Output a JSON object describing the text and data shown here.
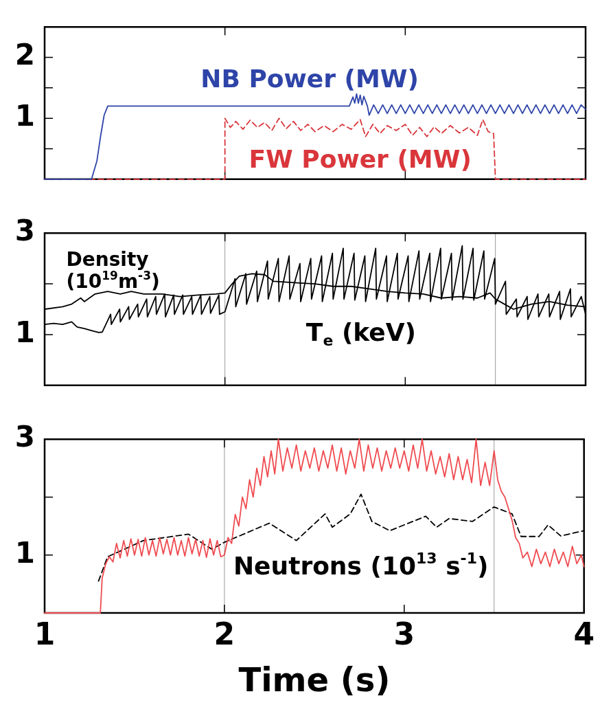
{
  "chart_data": [
    {
      "type": "line",
      "xlim": [
        1,
        4
      ],
      "xticks": [
        1,
        2,
        3,
        4
      ],
      "ylim": [
        0,
        2.5
      ],
      "yticks": [
        {
          "value": 0.5,
          "label": null
        },
        1,
        {
          "value": 1.5,
          "label": null
        },
        2
      ],
      "tick_labels": "y",
      "series": [
        {
          "name": "NB Power (MW)",
          "color": "#2e44a8",
          "line_style": "solid",
          "x": [
            1,
            1.26,
            1.29,
            1.31,
            1.33,
            1.35,
            2.0,
            2.69,
            2.71,
            2.72,
            2.73,
            2.74,
            2.75,
            2.76,
            2.77,
            2.79,
            2.8,
            2.825,
            2.85,
            2.875,
            2.9,
            2.925,
            2.95,
            2.975,
            3.0,
            3.025,
            3.05,
            3.075,
            3.1,
            3.125,
            3.15,
            3.175,
            3.2,
            3.225,
            3.25,
            3.275,
            3.3,
            3.325,
            3.35,
            3.375,
            3.4,
            3.425,
            3.45,
            3.475,
            3.5,
            3.525,
            3.55,
            3.575,
            3.6,
            3.625,
            3.65,
            3.675,
            3.7,
            3.725,
            3.75,
            3.775,
            3.8,
            3.825,
            3.85,
            3.875,
            3.9,
            3.925,
            3.95,
            3.975,
            4.0
          ],
          "values": [
            0,
            0,
            0.3,
            0.7,
            1.05,
            1.2,
            1.2,
            1.2,
            1.35,
            1.25,
            1.4,
            1.25,
            1.38,
            1.22,
            1.36,
            1.2,
            1.05,
            1.22,
            1.08,
            1.22,
            1.08,
            1.22,
            1.08,
            1.22,
            1.08,
            1.22,
            1.08,
            1.22,
            1.08,
            1.22,
            1.08,
            1.22,
            1.08,
            1.22,
            1.08,
            1.22,
            1.08,
            1.22,
            1.08,
            1.22,
            1.08,
            1.22,
            1.08,
            1.22,
            1.08,
            1.22,
            1.08,
            1.22,
            1.08,
            1.22,
            1.08,
            1.22,
            1.08,
            1.22,
            1.08,
            1.22,
            1.08,
            1.22,
            1.08,
            1.22,
            1.08,
            1.22,
            1.08,
            1.22,
            1.15
          ]
        },
        {
          "name": "FW Power (MW)",
          "color": "#d9363b",
          "line_style": "dashed",
          "x": [
            1,
            2.0,
            2.0,
            2.03,
            2.06,
            2.1,
            2.14,
            2.18,
            2.22,
            2.26,
            2.3,
            2.34,
            2.38,
            2.42,
            2.46,
            2.5,
            2.55,
            2.6,
            2.65,
            2.7,
            2.75,
            2.78,
            2.82,
            2.86,
            2.9,
            2.95,
            3.0,
            3.04,
            3.08,
            3.12,
            3.16,
            3.2,
            3.25,
            3.3,
            3.35,
            3.4,
            3.43,
            3.46,
            3.49,
            3.5,
            4
          ],
          "values": [
            0,
            0,
            1.0,
            0.85,
            0.95,
            0.82,
            0.97,
            0.85,
            0.93,
            0.8,
            1.0,
            0.83,
            0.95,
            0.8,
            0.9,
            0.78,
            0.88,
            0.78,
            0.9,
            0.82,
            0.98,
            0.7,
            0.9,
            0.75,
            0.88,
            0.8,
            0.9,
            0.72,
            0.85,
            0.7,
            0.86,
            0.75,
            0.88,
            0.76,
            0.85,
            0.72,
            0.98,
            0.78,
            0.75,
            0,
            0
          ]
        }
      ]
    },
    {
      "type": "line",
      "xlim": [
        1,
        4
      ],
      "xticks": [
        1,
        2,
        3,
        4
      ],
      "ylim": [
        0,
        3
      ],
      "yticks": [
        1,
        {
          "value": 2,
          "label": null
        },
        3
      ],
      "tick_labels": "y",
      "ref_lines": [
        {
          "axis": "x",
          "value": 2,
          "color": "#999999"
        },
        {
          "axis": "x",
          "value": 3.5,
          "color": "#999999"
        }
      ],
      "series": [
        {
          "name": "Density (10$^{19}$m$^{-3}$)",
          "color": "#000000",
          "line_style": "solid",
          "x": [
            1.0,
            1.1,
            1.15,
            1.2,
            1.22,
            1.28,
            1.35,
            1.42,
            1.48,
            1.55,
            1.65,
            1.75,
            1.85,
            1.95,
            2.0,
            2.04,
            2.08,
            2.15,
            2.22,
            2.27,
            2.4,
            2.5,
            2.6,
            2.7,
            2.8,
            2.9,
            3.0,
            3.1,
            3.2,
            3.3,
            3.4,
            3.47,
            3.5,
            3.55,
            3.6,
            3.7,
            3.8,
            3.9,
            4.0
          ],
          "values": [
            1.5,
            1.55,
            1.6,
            1.72,
            1.65,
            1.8,
            1.85,
            1.8,
            1.85,
            1.8,
            1.8,
            1.75,
            1.78,
            1.8,
            1.82,
            2.0,
            2.15,
            2.2,
            2.18,
            2.05,
            2.02,
            2.0,
            1.95,
            1.95,
            1.9,
            1.85,
            1.82,
            1.8,
            1.72,
            1.75,
            1.72,
            1.82,
            1.7,
            1.6,
            1.5,
            1.6,
            1.65,
            1.58,
            1.55
          ]
        },
        {
          "name": "T$_{e}$ (keV)",
          "color": "#000000",
          "line_style": "solid",
          "x": [
            1.0,
            1.05,
            1.1,
            1.15,
            1.18,
            1.22,
            1.26,
            1.3,
            1.32,
            1.366,
            1.37,
            1.416,
            1.42,
            1.466,
            1.47,
            1.516,
            1.52,
            1.566,
            1.57,
            1.616,
            1.62,
            1.666,
            1.67,
            1.716,
            1.72,
            1.766,
            1.77,
            1.816,
            1.82,
            1.866,
            1.87,
            1.916,
            1.92,
            1.966,
            1.97,
            2.0,
            2.056,
            2.06,
            2.116,
            2.12,
            2.176,
            2.18,
            2.236,
            2.24,
            2.296,
            2.3,
            2.356,
            2.36,
            2.416,
            2.42,
            2.476,
            2.48,
            2.536,
            2.54,
            2.596,
            2.6,
            2.656,
            2.66,
            2.716,
            2.72,
            2.776,
            2.78,
            2.836,
            2.84,
            2.896,
            2.9,
            2.956,
            2.96,
            3.016,
            3.02,
            3.076,
            3.08,
            3.136,
            3.14,
            3.196,
            3.2,
            3.256,
            3.26,
            3.316,
            3.32,
            3.376,
            3.38,
            3.436,
            3.44,
            3.496,
            3.5,
            3.556,
            3.56,
            3.616,
            3.62,
            3.676,
            3.68,
            3.736,
            3.74,
            3.796,
            3.8,
            3.856,
            3.86,
            3.916,
            3.92,
            3.976,
            4.0
          ],
          "values": [
            1.2,
            1.22,
            1.2,
            1.25,
            1.15,
            1.12,
            1.08,
            1.04,
            1.05,
            1.4,
            1.2,
            1.5,
            1.25,
            1.55,
            1.3,
            1.6,
            1.35,
            1.7,
            1.35,
            1.75,
            1.4,
            1.8,
            1.35,
            1.78,
            1.4,
            1.78,
            1.4,
            1.75,
            1.4,
            1.78,
            1.4,
            1.75,
            1.42,
            1.78,
            1.4,
            1.45,
            2.1,
            1.55,
            2.2,
            1.6,
            2.25,
            1.65,
            2.45,
            1.7,
            2.5,
            1.65,
            2.55,
            1.7,
            2.4,
            1.65,
            2.5,
            1.7,
            2.55,
            1.65,
            2.6,
            1.7,
            2.7,
            1.7,
            2.6,
            1.68,
            2.55,
            1.65,
            2.7,
            1.7,
            2.55,
            1.65,
            2.6,
            1.7,
            2.55,
            1.65,
            2.65,
            1.7,
            2.6,
            1.65,
            2.7,
            1.7,
            2.6,
            1.68,
            2.75,
            1.7,
            2.7,
            1.68,
            2.65,
            1.7,
            2.5,
            1.6,
            2.05,
            1.4,
            1.7,
            1.35,
            1.75,
            1.3,
            1.8,
            1.35,
            1.8,
            1.35,
            1.85,
            1.3,
            1.9,
            1.35,
            1.75,
            1.4
          ]
        }
      ]
    },
    {
      "type": "line",
      "xlim": [
        1,
        4
      ],
      "xticks": [
        1,
        2,
        3,
        4
      ],
      "ylim": [
        0,
        3
      ],
      "yticks": [
        1,
        {
          "value": 2,
          "label": null
        },
        3
      ],
      "xlabel": "Time (s)",
      "annotations": [
        "Neutrons (10$^{13}$ s$^{-1}$)"
      ],
      "ref_lines": [
        {
          "axis": "x",
          "value": 2,
          "color": "#999999"
        },
        {
          "axis": "x",
          "value": 3.5,
          "color": "#999999"
        }
      ],
      "series": [
        {
          "color": "#ef4b50",
          "line_style": "solid",
          "x": [
            1.0,
            1.31,
            1.32,
            1.34,
            1.36,
            1.38,
            1.4,
            1.42,
            1.44,
            1.46,
            1.48,
            1.5,
            1.52,
            1.54,
            1.56,
            1.58,
            1.6,
            1.62,
            1.64,
            1.66,
            1.68,
            1.7,
            1.72,
            1.74,
            1.76,
            1.78,
            1.8,
            1.82,
            1.84,
            1.86,
            1.88,
            1.9,
            1.92,
            1.94,
            1.96,
            1.98,
            2.0,
            2.02,
            2.04,
            2.06,
            2.08,
            2.1,
            2.12,
            2.14,
            2.16,
            2.18,
            2.2,
            2.22,
            2.24,
            2.26,
            2.28,
            2.3,
            2.325,
            2.35,
            2.375,
            2.4,
            2.425,
            2.45,
            2.475,
            2.5,
            2.525,
            2.55,
            2.575,
            2.6,
            2.625,
            2.65,
            2.675,
            2.7,
            2.725,
            2.75,
            2.775,
            2.8,
            2.825,
            2.85,
            2.875,
            2.9,
            2.925,
            2.95,
            2.975,
            3.0,
            3.025,
            3.05,
            3.075,
            3.1,
            3.125,
            3.15,
            3.175,
            3.2,
            3.225,
            3.25,
            3.275,
            3.3,
            3.325,
            3.35,
            3.375,
            3.4,
            3.425,
            3.45,
            3.475,
            3.5,
            3.52,
            3.54,
            3.56,
            3.58,
            3.6,
            3.62,
            3.64,
            3.66,
            3.685,
            3.71,
            3.735,
            3.76,
            3.785,
            3.81,
            3.835,
            3.86,
            3.885,
            3.91,
            3.935,
            3.96,
            3.985,
            4.0
          ],
          "values": [
            0,
            0,
            0.6,
            0.85,
            0.97,
            0.88,
            1.2,
            0.95,
            1.25,
            0.98,
            1.28,
            1.0,
            1.27,
            0.98,
            1.3,
            1.0,
            1.25,
            0.98,
            1.3,
            1.02,
            1.27,
            1.0,
            1.3,
            1.0,
            1.25,
            0.98,
            1.3,
            1.02,
            1.27,
            0.98,
            1.25,
            0.96,
            1.28,
            1.0,
            1.25,
            0.97,
            1.0,
            1.3,
            1.2,
            1.7,
            1.5,
            2.0,
            1.8,
            2.3,
            2.0,
            2.5,
            2.2,
            2.7,
            2.35,
            2.8,
            2.4,
            3.0,
            2.45,
            2.85,
            2.5,
            2.9,
            2.45,
            2.8,
            2.5,
            2.85,
            2.45,
            2.8,
            2.5,
            2.9,
            2.45,
            2.85,
            2.4,
            2.8,
            2.5,
            3.0,
            2.45,
            2.9,
            2.5,
            2.85,
            2.45,
            2.8,
            2.5,
            2.85,
            2.5,
            2.8,
            2.45,
            2.9,
            2.5,
            3.0,
            2.45,
            2.8,
            2.4,
            2.7,
            2.35,
            2.75,
            2.3,
            2.7,
            2.3,
            2.65,
            2.25,
            3.0,
            2.2,
            2.6,
            2.2,
            2.8,
            2.3,
            2.1,
            2.0,
            1.8,
            1.6,
            1.3,
            1.2,
            0.95,
            1.05,
            0.8,
            1.1,
            0.85,
            1.05,
            0.8,
            1.1,
            0.85,
            1.05,
            0.8,
            1.15,
            0.85,
            1.0,
            0.8
          ]
        },
        {
          "color": "#000000",
          "line_style": "dashed",
          "x": [
            1.3,
            1.35,
            1.55,
            1.8,
            1.93,
            2.0,
            2.25,
            2.4,
            2.56,
            2.6,
            2.7,
            2.76,
            2.82,
            2.92,
            3.12,
            3.18,
            3.25,
            3.38,
            3.5,
            3.6,
            3.65,
            3.75,
            3.8,
            3.87,
            4.0
          ],
          "values": [
            0.55,
            0.97,
            1.25,
            1.36,
            1.1,
            1.22,
            1.55,
            1.25,
            1.71,
            1.48,
            1.71,
            2.05,
            1.58,
            1.42,
            1.67,
            1.48,
            1.63,
            1.58,
            1.83,
            1.71,
            1.32,
            1.32,
            1.52,
            1.33,
            1.42
          ]
        }
      ]
    }
  ]
}
